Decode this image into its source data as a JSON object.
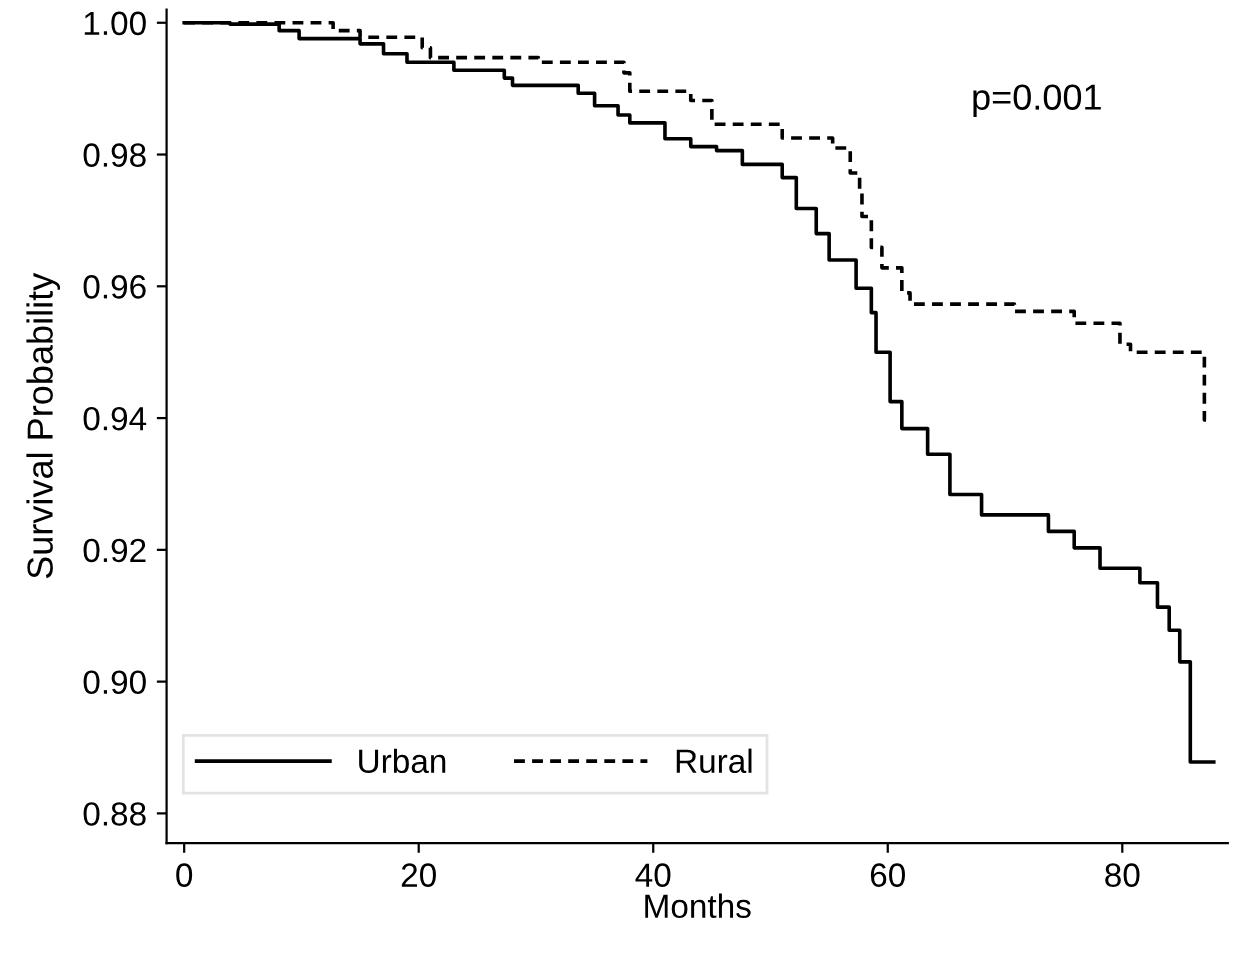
{
  "chart_data": {
    "type": "step",
    "xlabel": "Months",
    "ylabel": "Survival Probability",
    "annotations": [
      "p=0.001"
    ],
    "xlim": [
      -1.5,
      89
    ],
    "xticks": [
      0,
      20,
      40,
      60,
      80
    ],
    "ylim": [
      0.8755,
      1.002
    ],
    "yticks": [
      {
        "value": 0.88,
        "label": "0.88"
      },
      {
        "value": 0.9,
        "label": "0.90"
      },
      {
        "value": 0.92,
        "label": "0.92"
      },
      {
        "value": 0.94,
        "label": "0.94"
      },
      {
        "value": 0.96,
        "label": "0.96"
      },
      {
        "value": 0.98,
        "label": "0.98"
      },
      {
        "value": 1.0,
        "label": "1.00"
      }
    ],
    "grid": false,
    "legend": "bottom left",
    "series": [
      {
        "name": "Urban",
        "color": "#000000",
        "line_style": "solid",
        "x": [
          0,
          3.9,
          8.1,
          9.8,
          15,
          17,
          19,
          23,
          27.3,
          28,
          33.6,
          35,
          37,
          38,
          41,
          43.2,
          45.4,
          47.6,
          51,
          52.2,
          53.9,
          55,
          57.3,
          58.6,
          59,
          60.2,
          61.2,
          63.4,
          65.3,
          68,
          71.7,
          73.7,
          75.9,
          78.1,
          81.5,
          83,
          84,
          84.9,
          85.8,
          87.8
        ],
        "values": [
          1.0,
          0.9998,
          0.9988,
          0.9976,
          0.9968,
          0.9953,
          0.994,
          0.9928,
          0.9916,
          0.9905,
          0.9893,
          0.9874,
          0.986,
          0.9848,
          0.9824,
          0.9812,
          0.9806,
          0.9785,
          0.9765,
          0.9718,
          0.968,
          0.964,
          0.9597,
          0.956,
          0.95,
          0.9425,
          0.9384,
          0.9345,
          0.9284,
          0.9253,
          0.9253,
          0.9228,
          0.9203,
          0.9172,
          0.915,
          0.9113,
          0.9078,
          0.903,
          0.8878,
          0.8878
        ]
      },
      {
        "name": "Rural",
        "color": "#000000",
        "line_style": "dashed",
        "x": [
          0,
          12.7,
          15,
          20.3,
          21,
          30.2,
          37.5,
          38,
          43.2,
          45,
          51,
          55.3,
          56.8,
          57.6,
          57.8,
          58.6,
          59.5,
          61.2,
          61.9,
          70.8,
          75.9,
          79.8,
          80.7,
          87,
          87.2
        ],
        "values": [
          1.0,
          0.9988,
          0.9978,
          0.9962,
          0.9947,
          0.994,
          0.9924,
          0.9896,
          0.9882,
          0.9846,
          0.9825,
          0.981,
          0.9772,
          0.9747,
          0.9706,
          0.9659,
          0.9628,
          0.959,
          0.9573,
          0.9562,
          0.9544,
          0.9512,
          0.95,
          0.9397,
          0.9397
        ]
      }
    ]
  }
}
